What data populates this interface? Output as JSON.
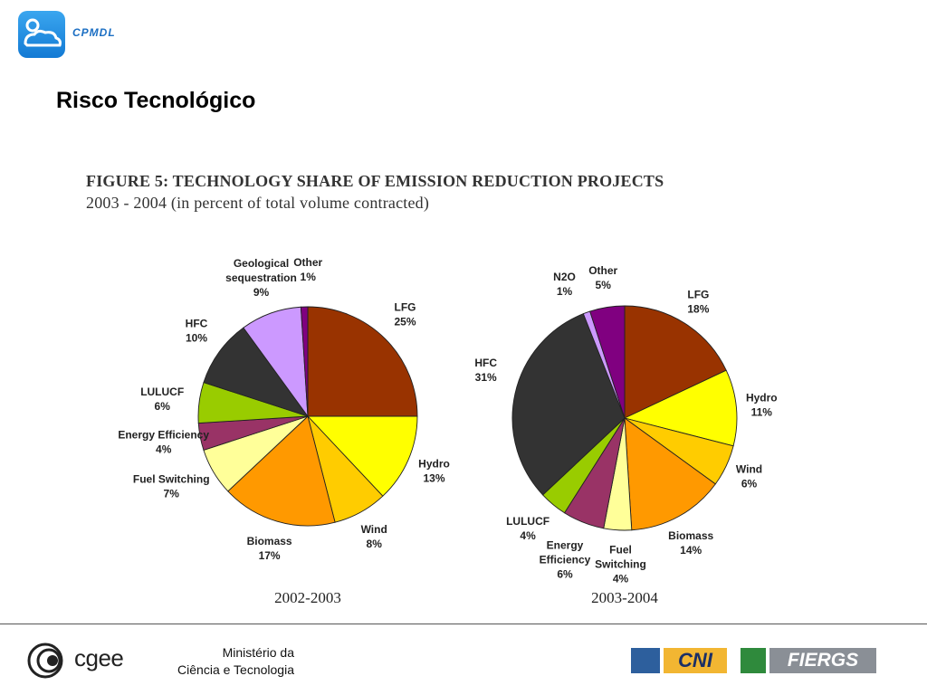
{
  "header": {
    "logo_text": "CPMDL",
    "page_title": "Risco Tecnológico"
  },
  "figure": {
    "title": "FIGURE 5: TECHNOLOGY SHARE OF EMISSION REDUCTION PROJECTS",
    "subtitle": "2003 - 2004 (in percent of total volume contracted)"
  },
  "chart_data": [
    {
      "type": "pie",
      "xlabel": "2002-2003",
      "slices": [
        {
          "label": "LFG",
          "value": 25,
          "value_text": "25%",
          "color": "#993300"
        },
        {
          "label": "Hydro",
          "value": 13,
          "value_text": "13%",
          "color": "#ffff00"
        },
        {
          "label": "Wind",
          "value": 8,
          "value_text": "8%",
          "color": "#ffcc00"
        },
        {
          "label": "Biomass",
          "value": 17,
          "value_text": "17%",
          "color": "#ff9900"
        },
        {
          "label": "Fuel Switching",
          "value": 7,
          "value_text": "7%",
          "color": "#ffff99"
        },
        {
          "label": "Energy Efficiency",
          "value": 4,
          "value_text": "4%",
          "color": "#993366"
        },
        {
          "label": "LULUCF",
          "value": 6,
          "value_text": "6%",
          "color": "#99cc00"
        },
        {
          "label": "HFC",
          "value": 10,
          "value_text": "10%",
          "color": "#333333"
        },
        {
          "label": "Geological\nsequestration",
          "value": 9,
          "value_text": "9%",
          "color": "#cc99ff"
        },
        {
          "label": "Other",
          "value": 1,
          "value_text": "1%",
          "color": "#800080"
        }
      ]
    },
    {
      "type": "pie",
      "xlabel": "2003-2004",
      "slices": [
        {
          "label": "LFG",
          "value": 18,
          "value_text": "18%",
          "color": "#993300"
        },
        {
          "label": "Hydro",
          "value": 11,
          "value_text": "11%",
          "color": "#ffff00"
        },
        {
          "label": "Wind",
          "value": 6,
          "value_text": "6%",
          "color": "#ffcc00"
        },
        {
          "label": "Biomass",
          "value": 14,
          "value_text": "14%",
          "color": "#ff9900"
        },
        {
          "label": "Fuel\nSwitching",
          "value": 4,
          "value_text": "4%",
          "color": "#ffff99"
        },
        {
          "label": "Energy\nEfficiency",
          "value": 6,
          "value_text": "6%",
          "color": "#993366"
        },
        {
          "label": "LULUCF",
          "value": 4,
          "value_text": "4%",
          "color": "#99cc00"
        },
        {
          "label": "HFC",
          "value": 31,
          "value_text": "31%",
          "color": "#333333"
        },
        {
          "label": "N2O",
          "value": 1,
          "value_text": "1%",
          "color": "#cc99ff"
        },
        {
          "label": "Other",
          "value": 5,
          "value_text": "5%",
          "color": "#800080"
        }
      ]
    }
  ],
  "footer": {
    "cgee_text": "cgee",
    "ministry_line1": "Ministério da",
    "ministry_line2": "Ciência e Tecnologia",
    "cni_text": "CNI",
    "fiergs_text": "FIERGS"
  }
}
